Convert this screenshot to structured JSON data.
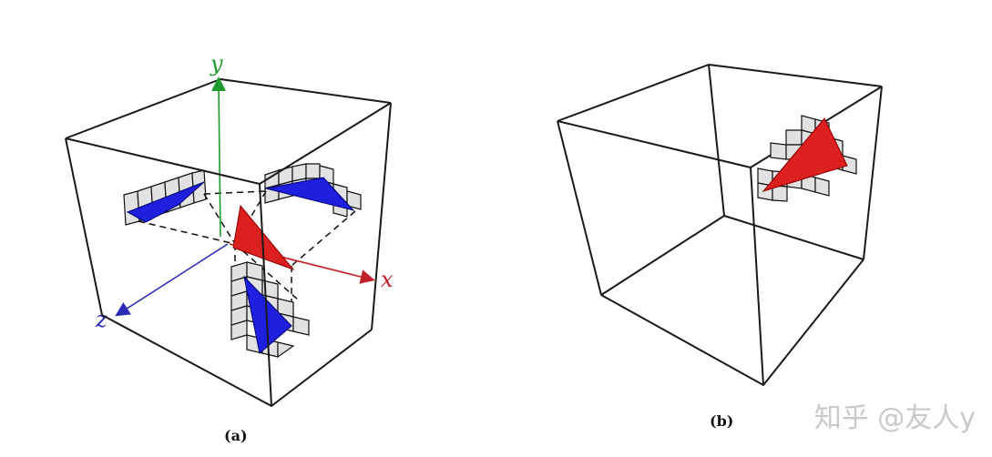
{
  "panels": {
    "a": {
      "label": "(a)"
    },
    "b": {
      "label": "(b)"
    }
  },
  "axes": {
    "x": {
      "label": "x",
      "color": "#c0222a"
    },
    "y": {
      "label": "y",
      "color": "#1f9a2e"
    },
    "z": {
      "label": "z",
      "color": "#2a2ab5"
    }
  },
  "colors": {
    "triangle": "#dc1f1f",
    "projection": "#1f1fe0",
    "grid_cell": "#e2e2e2"
  },
  "watermark": "知乎 @友人y"
}
